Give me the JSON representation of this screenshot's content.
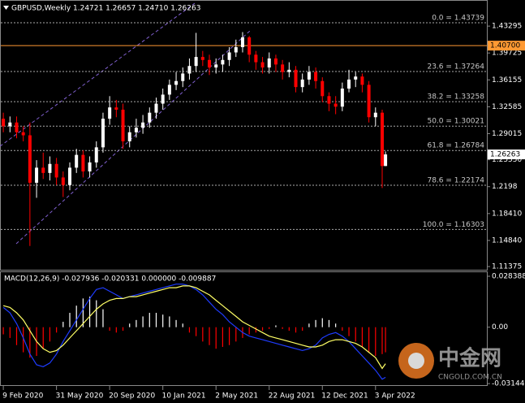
{
  "header": "GBPUSD,Weekly  1.24721 1.26657 1.24710 1.26263",
  "chart_data": [
    {
      "type": "candlestick",
      "x": [
        0,
        2,
        4,
        6,
        8,
        10,
        12,
        14,
        16,
        18,
        20,
        22,
        24,
        26,
        28,
        30,
        32,
        34,
        36,
        38,
        40,
        42,
        44,
        46,
        48,
        50,
        52,
        54,
        56,
        58,
        60,
        62,
        64,
        66,
        68,
        70,
        72,
        74,
        76,
        78,
        80,
        82,
        84,
        86,
        88,
        90,
        92,
        94,
        96,
        98,
        100,
        102,
        104,
        106,
        108,
        110,
        112,
        114,
        115
      ],
      "open": [
        1.31,
        1.3,
        1.305,
        1.292,
        1.288,
        1.225,
        1.245,
        1.238,
        1.25,
        1.232,
        1.222,
        1.245,
        1.262,
        1.24,
        1.252,
        1.272,
        1.31,
        1.325,
        1.322,
        1.28,
        1.292,
        1.298,
        1.305,
        1.318,
        1.33,
        1.342,
        1.355,
        1.36,
        1.37,
        1.38,
        1.392,
        1.388,
        1.378,
        1.382,
        1.388,
        1.398,
        1.405,
        1.418,
        1.395,
        1.385,
        1.378,
        1.39,
        1.382,
        1.372,
        1.375,
        1.352,
        1.362,
        1.372,
        1.36,
        1.34,
        1.33,
        1.326,
        1.35,
        1.362,
        1.366,
        1.355,
        1.312,
        1.318,
        1.24721
      ],
      "high": [
        1.318,
        1.313,
        1.313,
        1.3,
        1.305,
        1.255,
        1.265,
        1.26,
        1.258,
        1.24,
        1.252,
        1.27,
        1.268,
        1.26,
        1.28,
        1.318,
        1.34,
        1.335,
        1.33,
        1.3,
        1.31,
        1.315,
        1.325,
        1.338,
        1.35,
        1.362,
        1.372,
        1.378,
        1.39,
        1.424,
        1.4,
        1.395,
        1.39,
        1.395,
        1.405,
        1.415,
        1.425,
        1.42,
        1.4,
        1.392,
        1.398,
        1.395,
        1.388,
        1.385,
        1.38,
        1.37,
        1.38,
        1.378,
        1.365,
        1.345,
        1.34,
        1.358,
        1.375,
        1.372,
        1.37,
        1.36,
        1.325,
        1.322,
        1.26657
      ],
      "low": [
        1.292,
        1.292,
        1.284,
        1.28,
        1.141,
        1.205,
        1.23,
        1.228,
        1.222,
        1.206,
        1.215,
        1.238,
        1.232,
        1.232,
        1.245,
        1.265,
        1.302,
        1.312,
        1.27,
        1.272,
        1.285,
        1.29,
        1.298,
        1.31,
        1.322,
        1.335,
        1.348,
        1.352,
        1.362,
        1.372,
        1.38,
        1.368,
        1.37,
        1.372,
        1.38,
        1.392,
        1.398,
        1.385,
        1.375,
        1.37,
        1.37,
        1.372,
        1.362,
        1.365,
        1.345,
        1.345,
        1.355,
        1.35,
        1.332,
        1.32,
        1.316,
        1.32,
        1.345,
        1.352,
        1.345,
        1.305,
        1.3,
        1.218,
        1.2471
      ],
      "close": [
        1.3,
        1.305,
        1.292,
        1.288,
        1.225,
        1.245,
        1.238,
        1.25,
        1.232,
        1.222,
        1.245,
        1.262,
        1.24,
        1.252,
        1.272,
        1.31,
        1.325,
        1.322,
        1.28,
        1.292,
        1.298,
        1.305,
        1.318,
        1.33,
        1.342,
        1.355,
        1.36,
        1.37,
        1.38,
        1.392,
        1.388,
        1.378,
        1.382,
        1.388,
        1.398,
        1.405,
        1.418,
        1.395,
        1.385,
        1.378,
        1.39,
        1.382,
        1.372,
        1.375,
        1.352,
        1.362,
        1.372,
        1.36,
        1.34,
        1.33,
        1.326,
        1.35,
        1.362,
        1.366,
        1.355,
        1.312,
        1.318,
        1.24721,
        1.26263
      ],
      "up_color": "#ffffff",
      "down_color": "#ff0000",
      "xlim": [
        -1,
        145.5
      ],
      "xticks": [
        {
          "value": 0,
          "label": "9 Feb 2020"
        },
        {
          "value": 16,
          "label": "31 May 2020"
        },
        {
          "value": 32,
          "label": "20 Sep 2020"
        },
        {
          "value": 48,
          "label": "10 Jan 2021"
        },
        {
          "value": 64,
          "label": "2 May 2021"
        },
        {
          "value": 80,
          "label": "22 Aug 2021"
        },
        {
          "value": 96,
          "label": "12 Dec 2021"
        },
        {
          "value": 112,
          "label": "3 Apr 2022"
        }
      ],
      "ylim": [
        1.1095,
        1.4525
      ],
      "yticks": [
        1.43295,
        1.39725,
        1.36155,
        1.32585,
        1.29015,
        {
          "value": 1.2555,
          "label": "1.25550"
        },
        1.2198,
        {
          "value": 1.1841,
          "label": "1.18410"
        },
        {
          "value": 1.1484,
          "label": "1.14840"
        },
        1.11375
      ],
      "fib_levels": [
        {
          "value": 1.43739,
          "label": "0.0 = 1.43739"
        },
        {
          "value": 1.37264,
          "label": "23.6 = 1.37264"
        },
        {
          "value": 1.33258,
          "label": "38.2 = 1.33258"
        },
        {
          "value": 1.30021,
          "label": "50.0 = 1.30021"
        },
        {
          "value": 1.26784,
          "label": "61.8 = 1.26784"
        },
        {
          "value": 1.22174,
          "label": "78.6 = 1.22174"
        },
        {
          "value": 1.16303,
          "label": "100.0 = 1.16303"
        }
      ],
      "level_line": {
        "value": 1.407,
        "label": "1.40700",
        "color": "#ff9933"
      },
      "last_price": 1.26263
    },
    {
      "type": "macd",
      "title": "MACD(12,26,9) -0.027936 -0.020331 0.000000 -0.009887",
      "histogram": [
        -0.004,
        -0.006,
        -0.01,
        -0.014,
        -0.017,
        -0.016,
        -0.012,
        -0.008,
        -0.003,
        0.003,
        0.008,
        0.012,
        0.016,
        0.017,
        0.015,
        0.01,
        -0.002,
        -0.003,
        -0.002,
        0.002,
        0.004,
        0.006,
        0.008,
        0.008,
        0.007,
        0.006,
        0.004,
        0.002,
        -0.003,
        -0.005,
        -0.008,
        -0.01,
        -0.012,
        -0.011,
        -0.01,
        -0.008,
        -0.006,
        -0.004,
        -0.003,
        -0.002,
        -0.001,
        0.001,
        -0.001,
        -0.002,
        -0.003,
        -0.002,
        0.002,
        0.004,
        0.005,
        0.004,
        0.002,
        -0.002,
        -0.005,
        -0.008,
        -0.011,
        -0.014,
        -0.016,
        -0.015,
        -0.014
      ],
      "macd": [
        0.011,
        0.008,
        0.002,
        -0.006,
        -0.015,
        -0.021,
        -0.022,
        -0.02,
        -0.015,
        -0.008,
        -0.002,
        0.004,
        0.01,
        0.016,
        0.021,
        0.022,
        0.02,
        0.018,
        0.016,
        0.017,
        0.018,
        0.019,
        0.02,
        0.021,
        0.022,
        0.023,
        0.024,
        0.024,
        0.023,
        0.021,
        0.018,
        0.014,
        0.01,
        0.007,
        0.003,
        0.0,
        -0.003,
        -0.005,
        -0.006,
        -0.007,
        -0.008,
        -0.009,
        -0.01,
        -0.011,
        -0.012,
        -0.013,
        -0.012,
        -0.01,
        -0.006,
        -0.004,
        -0.003,
        -0.005,
        -0.008,
        -0.012,
        -0.016,
        -0.02,
        -0.024,
        -0.029,
        -0.027936
      ],
      "signal": [
        0.012,
        0.011,
        0.008,
        0.004,
        -0.002,
        -0.008,
        -0.012,
        -0.014,
        -0.013,
        -0.01,
        -0.006,
        -0.002,
        0.002,
        0.006,
        0.01,
        0.013,
        0.015,
        0.016,
        0.016,
        0.017,
        0.017,
        0.018,
        0.019,
        0.02,
        0.021,
        0.022,
        0.022,
        0.023,
        0.023,
        0.022,
        0.02,
        0.018,
        0.015,
        0.012,
        0.009,
        0.006,
        0.003,
        0.001,
        -0.001,
        -0.003,
        -0.005,
        -0.006,
        -0.007,
        -0.008,
        -0.009,
        -0.01,
        -0.011,
        -0.011,
        -0.01,
        -0.008,
        -0.007,
        -0.007,
        -0.008,
        -0.009,
        -0.011,
        -0.014,
        -0.017,
        -0.023,
        -0.020331
      ],
      "macd_color": "#1e3cff",
      "signal_color": "#ffff66",
      "up_color": "#ffffff",
      "down_color": "#ff0000",
      "ylim": [
        -0.0323,
        0.0302
      ],
      "yticks": [
        0.028388,
        {
          "value": 0,
          "label": "0.00"
        },
        -0.031441
      ]
    }
  ],
  "watermark": {
    "name": "中金网",
    "site": "CNGOLD.COM.CN"
  }
}
